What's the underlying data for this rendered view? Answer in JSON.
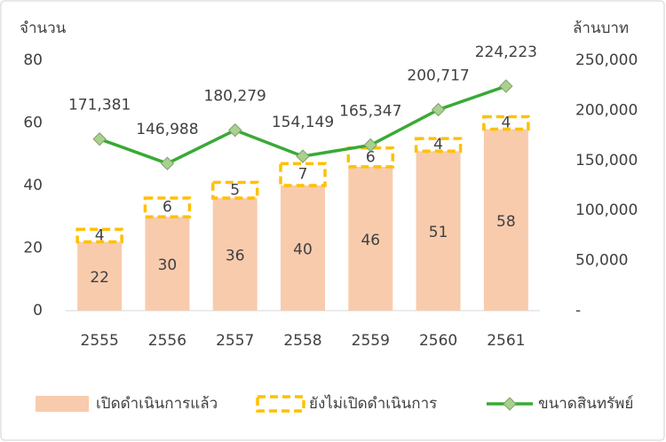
{
  "chart_data": {
    "type": "bar",
    "y_label": "จำนวน",
    "y2_label": "ล้านบาท",
    "categories": [
      "2555",
      "2556",
      "2557",
      "2558",
      "2559",
      "2560",
      "2561"
    ],
    "series": [
      {
        "name": "เปิดดำเนินการแล้ว",
        "type": "bar",
        "color": "#f8cbad",
        "values": [
          22,
          30,
          36,
          40,
          46,
          51,
          58
        ]
      },
      {
        "name": "ยังไม่เปิดดำเนินการ",
        "type": "bar",
        "dashed": true,
        "color": "#ffc000",
        "values": [
          4,
          6,
          5,
          7,
          6,
          4,
          4
        ]
      },
      {
        "name": "ขนาดสินทรัพย์",
        "type": "line",
        "axis": "y2",
        "color": "#3aa935",
        "marker_color": "#a9d18e",
        "values": [
          171381,
          146988,
          180279,
          154149,
          165347,
          200717,
          224223
        ],
        "value_labels": [
          "171,381",
          "146,988",
          "180,279",
          "154,149",
          "165,347",
          "200,717",
          "224,223"
        ]
      }
    ],
    "ylim": [
      0,
      80
    ],
    "yticks": [
      0,
      20,
      40,
      60,
      80
    ],
    "y2lim": [
      0,
      250000
    ],
    "y2ticks": [
      {
        "value": 0,
        "label": "-"
      },
      {
        "value": 50000,
        "label": "50,000"
      },
      {
        "value": 100000,
        "label": "100,000"
      },
      {
        "value": 150000,
        "label": "150,000"
      },
      {
        "value": 200000,
        "label": "200,000"
      },
      {
        "value": 250000,
        "label": "250,000"
      }
    ],
    "legend": "bottom"
  }
}
